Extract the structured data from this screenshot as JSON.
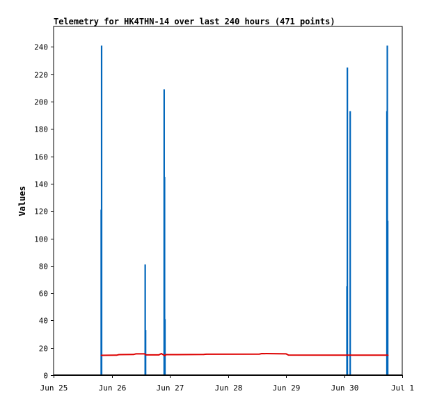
{
  "chart_data": {
    "type": "line",
    "title": "Telemetry for HK4THN-14 over last 240 hours (471 points)",
    "ylabel": "Values",
    "xlabel": "",
    "xlim": [
      "2023-06-25 00:00",
      "2023-07-01 00:00"
    ],
    "ylim": [
      0,
      255
    ],
    "x_tick_labels": [
      "Jun 25",
      "Jun 26",
      "Jun 27",
      "Jun 28",
      "Jun 29",
      "Jun 30",
      "Jul 1"
    ],
    "y_ticks": [
      0,
      20,
      40,
      60,
      80,
      100,
      120,
      140,
      160,
      180,
      200,
      220,
      240
    ],
    "grid": false,
    "series": [
      {
        "color": "#0066bb",
        "style": "spikes",
        "points": [
          [
            "2023-06-25 19:40",
            121
          ],
          [
            "2023-06-25 19:50",
            241
          ],
          [
            "2023-06-26 13:50",
            81
          ],
          [
            "2023-06-26 14:00",
            33
          ],
          [
            "2023-06-26 21:40",
            209
          ],
          [
            "2023-06-26 21:50",
            145
          ],
          [
            "2023-06-26 22:00",
            41
          ],
          [
            "2023-06-30 01:10",
            65
          ],
          [
            "2023-06-30 01:20",
            225
          ],
          [
            "2023-06-30 02:30",
            193
          ],
          [
            "2023-06-30 17:40",
            193
          ],
          [
            "2023-06-30 17:50",
            241
          ],
          [
            "2023-06-30 18:00",
            113
          ]
        ]
      },
      {
        "color": "#dd0000",
        "style": "line",
        "points": [
          [
            "2023-06-25 19:40",
            14.5
          ],
          [
            "2023-06-26 02:00",
            14.6
          ],
          [
            "2023-06-26 03:00",
            15.0
          ],
          [
            "2023-06-26 09:00",
            15.1
          ],
          [
            "2023-06-26 10:00",
            15.6
          ],
          [
            "2023-06-26 13:40",
            15.6
          ],
          [
            "2023-06-26 14:00",
            14.8
          ],
          [
            "2023-06-26 19:30",
            14.8
          ],
          [
            "2023-06-26 20:30",
            15.8
          ],
          [
            "2023-06-26 22:00",
            14.2
          ],
          [
            "2023-06-26 22:20",
            15.0
          ],
          [
            "2023-06-27 14:00",
            15.1
          ],
          [
            "2023-06-27 15:00",
            15.3
          ],
          [
            "2023-06-28 13:00",
            15.4
          ],
          [
            "2023-06-28 14:00",
            15.8
          ],
          [
            "2023-06-29 00:00",
            15.6
          ],
          [
            "2023-06-29 01:00",
            14.7
          ],
          [
            "2023-06-30 01:00",
            14.6
          ],
          [
            "2023-06-30 18:10",
            14.6
          ]
        ]
      },
      {
        "color": "#111111",
        "style": "line",
        "points": [
          [
            "2023-06-25 00:00",
            0
          ],
          [
            "2023-07-01 00:00",
            0
          ]
        ]
      }
    ]
  }
}
